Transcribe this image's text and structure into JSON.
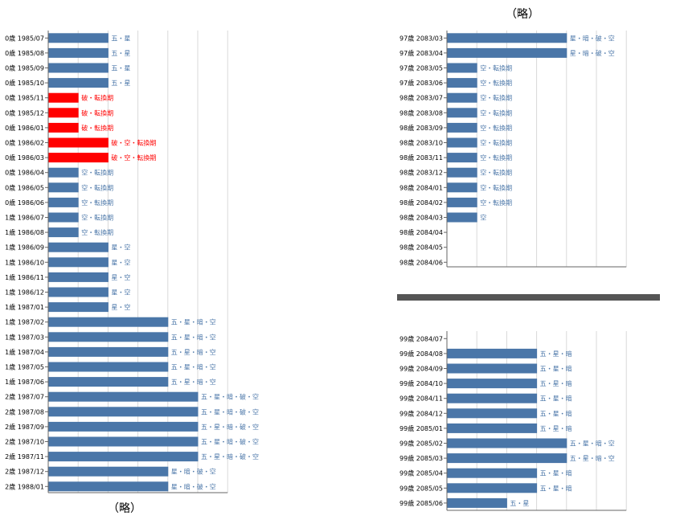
{
  "notes": {
    "top": "（略）",
    "bottom": "（略）"
  },
  "colors": {
    "normal": "#4a76a8",
    "highlight": "#ff0000",
    "grid": "#d9d9d9",
    "axis": "#666666",
    "divider": "#555555"
  },
  "chart_data": [
    {
      "type": "bar",
      "orientation": "horizontal",
      "xlim": [
        0,
        6
      ],
      "grid": true,
      "categories": [
        "0歳 1985/07",
        "0歳 1985/08",
        "0歳 1985/09",
        "0歳 1985/10",
        "0歳 1985/11",
        "0歳 1985/12",
        "0歳 1986/01",
        "0歳 1986/02",
        "0歳 1986/03",
        "0歳 1986/04",
        "0歳 1986/05",
        "0歳 1986/06",
        "1歳 1986/07",
        "1歳 1986/08",
        "1歳 1986/09",
        "1歳 1986/10",
        "1歳 1986/11",
        "1歳 1986/12",
        "1歳 1987/01",
        "1歳 1987/02",
        "1歳 1987/03",
        "1歳 1987/04",
        "1歳 1987/05",
        "1歳 1987/06",
        "2歳 1987/07",
        "2歳 1987/08",
        "2歳 1987/09",
        "2歳 1987/10",
        "2歳 1987/11",
        "2歳 1987/12",
        "2歳 1988/01"
      ],
      "values": [
        2,
        2,
        2,
        2,
        1,
        1,
        1,
        2,
        2,
        1,
        1,
        1,
        1,
        1,
        2,
        2,
        2,
        2,
        2,
        4,
        4,
        4,
        4,
        4,
        5,
        5,
        5,
        5,
        5,
        4,
        4
      ],
      "data_labels": [
        "五・星",
        "五・星",
        "五・星",
        "五・星",
        "破・転換期",
        "破・転換期",
        "破・転換期",
        "破・空・転換期",
        "破・空・転換期",
        "空・転換期",
        "空・転換期",
        "空・転換期",
        "空・転換期",
        "空・転換期",
        "星・空",
        "星・空",
        "星・空",
        "星・空",
        "星・空",
        "五・星・暗・空",
        "五・星・暗・空",
        "五・星・暗・空",
        "五・星・暗・空",
        "五・星・暗・空",
        "五・星・暗・破・空",
        "五・星・暗・破・空",
        "五・星・暗・破・空",
        "五・星・暗・破・空",
        "五・星・暗・破・空",
        "星・暗・破・空",
        "星・暗・破・空"
      ],
      "highlight": [
        false,
        false,
        false,
        false,
        true,
        true,
        true,
        true,
        true,
        false,
        false,
        false,
        false,
        false,
        false,
        false,
        false,
        false,
        false,
        false,
        false,
        false,
        false,
        false,
        false,
        false,
        false,
        false,
        false,
        false,
        false
      ]
    },
    {
      "type": "bar",
      "orientation": "horizontal",
      "xlim": [
        0,
        6
      ],
      "grid": true,
      "categories": [
        "97歳 2083/03",
        "97歳 2083/04",
        "97歳 2083/05",
        "97歳 2083/06",
        "98歳 2083/07",
        "98歳 2083/08",
        "98歳 2083/09",
        "98歳 2083/10",
        "98歳 2083/11",
        "98歳 2083/12",
        "98歳 2084/01",
        "98歳 2084/02",
        "98歳 2084/03",
        "98歳 2084/04",
        "98歳 2084/05",
        "98歳 2084/06"
      ],
      "values": [
        4,
        4,
        1,
        1,
        1,
        1,
        1,
        1,
        1,
        1,
        1,
        1,
        1,
        0,
        0,
        0
      ],
      "data_labels": [
        "星・暗・破・空",
        "星・暗・破・空",
        "空・転換期",
        "空・転換期",
        "空・転換期",
        "空・転換期",
        "空・転換期",
        "空・転換期",
        "空・転換期",
        "空・転換期",
        "空・転換期",
        "空・転換期",
        "空",
        "",
        "",
        ""
      ],
      "highlight": [
        false,
        false,
        false,
        false,
        false,
        false,
        false,
        false,
        false,
        false,
        false,
        false,
        false,
        false,
        false,
        false
      ]
    },
    {
      "type": "bar",
      "orientation": "horizontal",
      "xlim": [
        0,
        6
      ],
      "grid": true,
      "categories": [
        "99歳 2084/07",
        "99歳 2084/08",
        "99歳 2084/09",
        "99歳 2084/10",
        "99歳 2084/11",
        "99歳 2084/12",
        "99歳 2085/01",
        "99歳 2085/02",
        "99歳 2085/03",
        "99歳 2085/04",
        "99歳 2085/05",
        "99歳 2085/06"
      ],
      "values": [
        0,
        3,
        3,
        3,
        3,
        3,
        3,
        4,
        4,
        3,
        3,
        2
      ],
      "data_labels": [
        "",
        "五・星・暗",
        "五・星・暗",
        "五・星・暗",
        "五・星・暗",
        "五・星・暗",
        "五・星・暗",
        "五・星・暗・空",
        "五・星・暗・空",
        "五・星・暗",
        "五・星・暗",
        "五・星"
      ],
      "highlight": [
        false,
        false,
        false,
        false,
        false,
        false,
        false,
        false,
        false,
        false,
        false,
        false
      ]
    }
  ]
}
